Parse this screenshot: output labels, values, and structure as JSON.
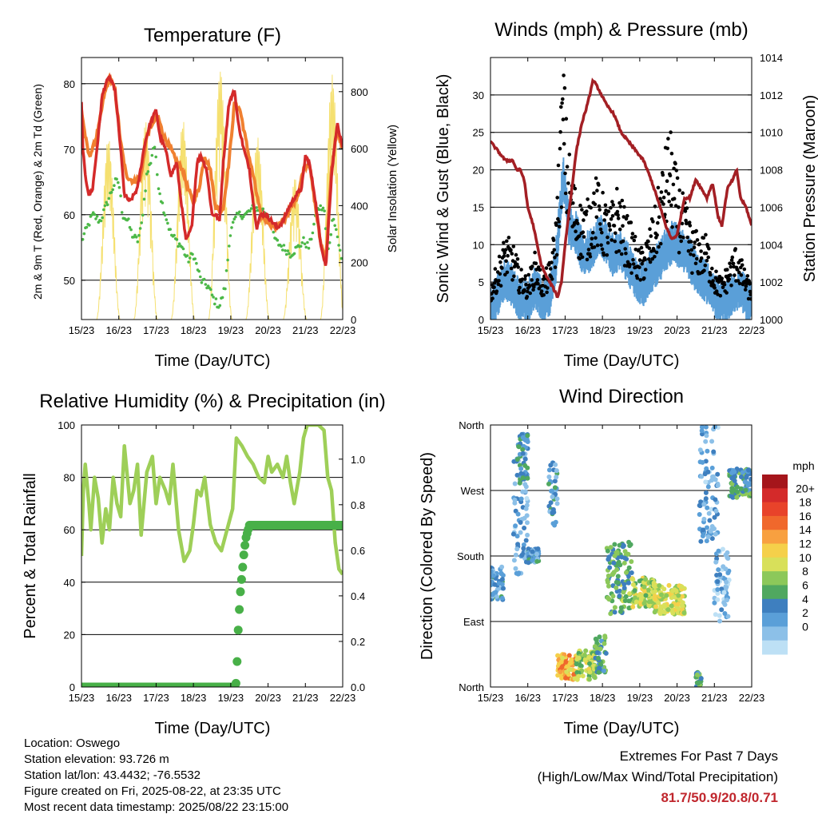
{
  "x_ticks": [
    "15/23",
    "16/23",
    "17/23",
    "18/23",
    "19/23",
    "20/23",
    "21/23",
    "22/23"
  ],
  "time_xlabel": "Time (Day/UTC)",
  "info": {
    "location": "Location: Oswego",
    "elevation": "Station elevation: 93.726 m",
    "latlon": "Station lat/lon: 43.4432; -76.5532",
    "created": "Figure created on Fri, 2025-08-22, at 23:35 UTC",
    "recent": "Most recent data timestamp: 2025/08/22 23:15:00"
  },
  "extremes": {
    "title": "Extremes For Past 7 Days",
    "subtitle": "(High/Low/Max Wind/Total Precipitation)",
    "values": "81.7/50.9/20.8/0.71"
  },
  "colors": {
    "temp_2m": "#d42a2a",
    "temp_9m": "#f08030",
    "dewpoint": "#4cb848",
    "insolation": "#f5e070",
    "sonic_wind": "#5a9fd8",
    "gust": "#000000",
    "pressure": "#a31f24",
    "rh": "#9ecf58",
    "precip": "#48b048"
  },
  "chart_data": [
    {
      "type": "line",
      "title": "Temperature (F)",
      "xlabel": "Time (Day/UTC)",
      "ylabel": "2m & 9m T (Red, Orange) & 2m Td (Green)",
      "y2label": "Solar Insolation (Yellow)",
      "x_days": [
        0,
        7
      ],
      "ylim": [
        44,
        84
      ],
      "y_ticks": [
        50,
        60,
        70,
        80
      ],
      "y2lim": [
        0,
        920
      ],
      "y2_ticks": [
        0,
        200,
        400,
        600,
        800
      ],
      "grid": true,
      "series": [
        {
          "name": "2m T",
          "axis": "left",
          "x": [
            0,
            0.04,
            0.1,
            0.2,
            0.3,
            0.45,
            0.55,
            0.65,
            0.75,
            0.9,
            1.05,
            1.15,
            1.3,
            1.5,
            1.7,
            1.85,
            2.0,
            2.1,
            2.25,
            2.4,
            2.55,
            2.65,
            2.8,
            2.95,
            3.1,
            3.2,
            3.35,
            3.5,
            3.6,
            3.7,
            3.8,
            3.95,
            4.1,
            4.2,
            4.35,
            4.5,
            4.6,
            4.7,
            4.8,
            4.95,
            5.1,
            5.25,
            5.4,
            5.55,
            5.75,
            5.9,
            6.0,
            6.1,
            6.25,
            6.4,
            6.55,
            6.7,
            6.85,
            7.0
          ],
          "y": [
            77,
            70,
            66,
            63,
            64,
            72,
            78,
            80,
            81,
            79,
            70,
            63,
            62,
            64,
            71,
            74,
            76,
            72,
            70,
            66,
            68,
            63,
            56,
            58,
            68,
            69,
            67,
            60,
            60,
            59,
            68,
            77,
            79,
            74,
            70,
            67,
            62,
            58,
            60,
            60,
            59,
            58,
            59,
            61,
            63,
            64,
            69,
            68,
            63,
            56,
            52,
            66,
            74,
            70
          ]
        },
        {
          "name": "9m T",
          "axis": "left",
          "x": [
            0,
            0.1,
            0.2,
            0.3,
            0.45,
            0.6,
            0.75,
            0.9,
            1.05,
            1.2,
            1.4,
            1.6,
            1.75,
            1.9,
            2.05,
            2.2,
            2.4,
            2.55,
            2.7,
            2.85,
            3.0,
            3.15,
            3.3,
            3.45,
            3.6,
            3.8,
            3.95,
            4.1,
            4.25,
            4.45,
            4.6,
            4.8,
            5.0,
            5.2,
            5.4,
            5.6,
            5.8,
            5.95,
            6.1,
            6.25,
            6.4,
            6.55,
            6.7,
            6.85,
            7.0
          ],
          "y": [
            76,
            72,
            69,
            70,
            73,
            78,
            81,
            79,
            71,
            66,
            65,
            66,
            72,
            74,
            75,
            72,
            70,
            68,
            67,
            64,
            62,
            64,
            69,
            67,
            61,
            61,
            68,
            77,
            76,
            70,
            66,
            60,
            59,
            58,
            59,
            61,
            63,
            67,
            68,
            62,
            56,
            53,
            67,
            73,
            70
          ]
        },
        {
          "name": "2m Td",
          "axis": "left",
          "x": [
            0,
            0.15,
            0.3,
            0.5,
            0.7,
            0.9,
            1.0,
            1.1,
            1.25,
            1.35,
            1.5,
            1.6,
            1.75,
            1.85,
            1.95,
            2.05,
            2.15,
            2.25,
            2.4,
            2.55,
            2.7,
            2.85,
            3.0,
            3.2,
            3.4,
            3.55,
            3.7,
            3.85,
            4.0,
            4.2,
            4.4,
            4.6,
            4.8,
            5.0,
            5.2,
            5.4,
            5.6,
            5.8,
            5.95,
            6.1,
            6.25,
            6.35,
            6.5,
            6.6,
            6.75,
            6.85,
            7.0
          ],
          "y": [
            56,
            58,
            60,
            59,
            62,
            65,
            65,
            60,
            59,
            57,
            56,
            58,
            66,
            68,
            71,
            65,
            62,
            60,
            57,
            56,
            55,
            53,
            54,
            50,
            49,
            47,
            46,
            49,
            58,
            60,
            60,
            61,
            61,
            60,
            56,
            55,
            54,
            55,
            56,
            55,
            59,
            61,
            61,
            54,
            60,
            57,
            52
          ]
        },
        {
          "name": "Solar Insolation",
          "axis": "right",
          "x_days_peak": [
            0.72,
            1.72,
            2.72,
            3.72,
            4.72,
            5.72,
            6.72
          ],
          "peaks": [
            640,
            700,
            700,
            880,
            640,
            500,
            860
          ]
        }
      ]
    },
    {
      "type": "line",
      "title": "Winds (mph) & Pressure (mb)",
      "xlabel": "Time (Day/UTC)",
      "ylabel": "Sonic Wind & Gust (Blue, Black)",
      "y2label": "Station Pressure (Maroon)",
      "x_days": [
        0,
        7
      ],
      "ylim": [
        0,
        35
      ],
      "y_ticks": [
        0,
        5,
        10,
        15,
        20,
        25,
        30
      ],
      "y2lim": [
        1000,
        1014
      ],
      "y2_ticks": [
        1000,
        1002,
        1004,
        1006,
        1008,
        1010,
        1012,
        1014
      ],
      "grid": true,
      "series": [
        {
          "name": "Sonic Wind",
          "axis": "left",
          "x": [
            0,
            0.2,
            0.4,
            0.6,
            0.8,
            1.0,
            1.2,
            1.4,
            1.6,
            1.75,
            1.85,
            1.95,
            2.1,
            2.3,
            2.5,
            2.7,
            2.9,
            3.1,
            3.3,
            3.5,
            3.7,
            3.9,
            4.1,
            4.3,
            4.5,
            4.7,
            4.9,
            5.1,
            5.3,
            5.5,
            5.7,
            5.9,
            6.1,
            6.3,
            6.5,
            6.7,
            6.9,
            7.0
          ],
          "y": [
            2,
            4,
            6,
            5,
            3,
            3,
            5,
            3,
            4,
            8,
            14,
            20,
            13,
            12,
            9,
            10,
            12,
            11,
            9,
            10,
            8,
            6,
            5,
            7,
            8,
            10,
            11,
            10,
            9,
            7,
            6,
            5,
            3,
            3,
            4,
            5,
            3,
            3
          ]
        },
        {
          "name": "Gust",
          "axis": "left",
          "x": [
            0,
            0.2,
            0.4,
            0.6,
            0.8,
            1.0,
            1.2,
            1.4,
            1.6,
            1.75,
            1.85,
            1.95,
            2.05,
            2.2,
            2.4,
            2.6,
            2.8,
            3.0,
            3.2,
            3.4,
            3.6,
            3.8,
            4.0,
            4.2,
            4.4,
            4.6,
            4.8,
            5.0,
            5.2,
            5.4,
            5.6,
            5.8,
            6.0,
            6.2,
            6.4,
            6.6,
            6.8,
            7.0
          ],
          "y": [
            4,
            7,
            10,
            9,
            6,
            5,
            8,
            5,
            7,
            12,
            22,
            31,
            22,
            17,
            14,
            14,
            17,
            15,
            13,
            16,
            13,
            11,
            8,
            10,
            13,
            18,
            23,
            17,
            14,
            11,
            10,
            10,
            6,
            5,
            7,
            9,
            6,
            4
          ]
        },
        {
          "name": "Station Pressure",
          "axis": "right",
          "x": [
            0,
            0.2,
            0.4,
            0.6,
            0.7,
            0.8,
            0.9,
            1.0,
            1.15,
            1.25,
            1.35,
            1.5,
            1.65,
            1.8,
            1.9,
            2.0,
            2.15,
            2.3,
            2.45,
            2.6,
            2.75,
            2.9,
            3.1,
            3.3,
            3.5,
            3.7,
            3.9,
            4.1,
            4.3,
            4.5,
            4.7,
            4.85,
            5.0,
            5.1,
            5.2,
            5.35,
            5.5,
            5.65,
            5.8,
            5.95,
            6.1,
            6.2,
            6.35,
            6.5,
            6.6,
            6.7,
            6.85,
            7.0
          ],
          "y": [
            1009.5,
            1009,
            1008.5,
            1008.5,
            1008,
            1008,
            1007.5,
            1006,
            1005,
            1004,
            1003,
            1002.3,
            1001.8,
            1001.2,
            1002,
            1004,
            1006.5,
            1009,
            1010.5,
            1011.5,
            1012.8,
            1012.3,
            1011.5,
            1011,
            1010,
            1009.5,
            1009,
            1008.5,
            1007.5,
            1006.3,
            1005,
            1004.3,
            1004.5,
            1005.5,
            1006.5,
            1006.5,
            1007.5,
            1007,
            1006.5,
            1007.3,
            1005.5,
            1005,
            1007,
            1007.5,
            1008,
            1006.5,
            1006,
            1005
          ]
        }
      ]
    },
    {
      "type": "line",
      "title": "Relative Humidity (%) & Precipitation (in)",
      "xlabel": "Time (Day/UTC)",
      "ylabel": "Percent & Total Rainfall",
      "x_days": [
        0,
        7
      ],
      "ylim": [
        0,
        100
      ],
      "y_ticks": [
        0,
        20,
        40,
        60,
        80,
        100
      ],
      "y2lim": [
        0,
        1.15
      ],
      "y2_ticks": [
        "0.0",
        "0.2",
        "0.4",
        "0.6",
        "0.8",
        "1.0"
      ],
      "grid": true,
      "series": [
        {
          "name": "Relative Humidity",
          "axis": "left",
          "x": [
            0,
            0.05,
            0.1,
            0.2,
            0.25,
            0.35,
            0.45,
            0.55,
            0.65,
            0.75,
            0.85,
            0.95,
            1.05,
            1.15,
            1.3,
            1.4,
            1.5,
            1.6,
            1.75,
            1.9,
            2.0,
            2.1,
            2.25,
            2.35,
            2.45,
            2.6,
            2.75,
            2.9,
            3.0,
            3.1,
            3.2,
            3.3,
            3.45,
            3.6,
            3.75,
            3.9,
            4.05,
            4.15,
            4.3,
            4.45,
            4.6,
            4.75,
            4.9,
            5.0,
            5.1,
            5.25,
            5.4,
            5.5,
            5.6,
            5.7,
            5.85,
            5.95,
            6.05,
            6.15,
            6.35,
            6.5,
            6.6,
            6.7,
            6.8,
            6.9,
            7.0
          ],
          "y": [
            50,
            75,
            85,
            70,
            60,
            80,
            72,
            55,
            68,
            60,
            80,
            70,
            65,
            92,
            70,
            75,
            85,
            58,
            82,
            88,
            70,
            80,
            75,
            70,
            85,
            60,
            48,
            52,
            62,
            75,
            73,
            80,
            62,
            55,
            52,
            60,
            68,
            95,
            92,
            88,
            85,
            80,
            78,
            88,
            82,
            85,
            80,
            88,
            78,
            70,
            82,
            95,
            100,
            100,
            100,
            98,
            80,
            75,
            55,
            45,
            43
          ]
        },
        {
          "name": "Total Precipitation",
          "axis": "right",
          "x": [
            0,
            4.1,
            4.15,
            4.2,
            4.25,
            4.35,
            4.4,
            4.5,
            4.7,
            5.0,
            6.0,
            7.0
          ],
          "y": [
            0,
            0,
            0.02,
            0.25,
            0.4,
            0.58,
            0.65,
            0.71,
            0.71,
            0.71,
            0.71,
            0.71
          ]
        }
      ]
    },
    {
      "type": "scatter",
      "title": "Wind Direction",
      "xlabel": "Time (Day/UTC)",
      "ylabel": "Direction (Colored By Speed)",
      "x_days": [
        0,
        7
      ],
      "y_ticks": [
        "North",
        "East",
        "South",
        "West",
        "North"
      ],
      "ylim": [
        0,
        360
      ],
      "colorbar": {
        "title": "mph",
        "labels": [
          "20+",
          "18",
          "16",
          "14",
          "12",
          "10",
          "8",
          "6",
          "4",
          "2",
          "0"
        ],
        "colors": [
          "#a5151b",
          "#d42a2a",
          "#e8432a",
          "#f0682c",
          "#f8a040",
          "#f5d04a",
          "#d8e05a",
          "#8cc85a",
          "#50a860",
          "#3e7fbf",
          "#5a9fd8",
          "#8cc0e8",
          "#bde0f5"
        ]
      },
      "clusters": [
        {
          "x": [
            0.0,
            0.35
          ],
          "dir": [
            120,
            165
          ],
          "speed": 4
        },
        {
          "x": [
            0.6,
            1.0
          ],
          "dir": [
            150,
            330
          ],
          "speed": 3
        },
        {
          "x": [
            0.7,
            1.0
          ],
          "dir": [
            280,
            350
          ],
          "speed": 5
        },
        {
          "x": [
            1.0,
            1.3
          ],
          "dir": [
            170,
            190
          ],
          "speed": 4
        },
        {
          "x": [
            1.55,
            1.8
          ],
          "dir": [
            220,
            310
          ],
          "speed": 4
        },
        {
          "x": [
            1.8,
            2.3
          ],
          "dir": [
            10,
            45
          ],
          "speed": 13
        },
        {
          "x": [
            2.3,
            2.8
          ],
          "dir": [
            10,
            50
          ],
          "speed": 9
        },
        {
          "x": [
            2.8,
            3.1
          ],
          "dir": [
            20,
            70
          ],
          "speed": 6
        },
        {
          "x": [
            3.1,
            3.8
          ],
          "dir": [
            100,
            200
          ],
          "speed": 7
        },
        {
          "x": [
            3.8,
            4.4
          ],
          "dir": [
            110,
            150
          ],
          "speed": 9
        },
        {
          "x": [
            4.4,
            5.2
          ],
          "dir": [
            100,
            140
          ],
          "speed": 10
        },
        {
          "x": [
            5.5,
            5.65
          ],
          "dir": [
            0,
            20
          ],
          "speed": 6
        },
        {
          "x": [
            5.6,
            6.1
          ],
          "dir": [
            200,
            360
          ],
          "speed": 3
        },
        {
          "x": [
            6.0,
            6.4
          ],
          "dir": [
            90,
            190
          ],
          "speed": 2
        },
        {
          "x": [
            6.4,
            7.0
          ],
          "dir": [
            260,
            300
          ],
          "speed": 6
        }
      ]
    }
  ]
}
